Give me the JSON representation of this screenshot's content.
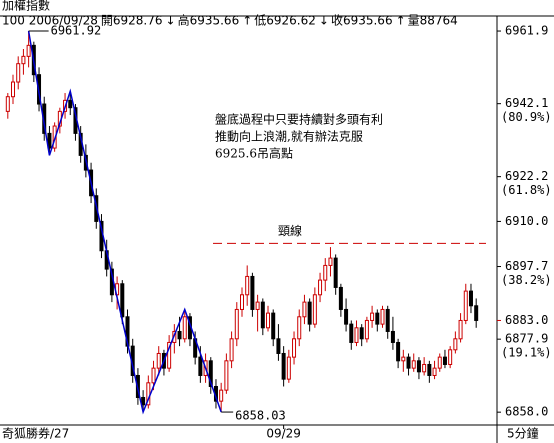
{
  "chart_data": {
    "type": "candlestick",
    "title": "加權指數",
    "info": [
      {
        "text": "100 2006/09/28",
        "color": "#000"
      },
      {
        "text": "開6928.76",
        "color": "#000"
      },
      {
        "text": "↓",
        "color": "#000"
      },
      {
        "text": "高6935.66",
        "color": "#900"
      },
      {
        "text": "↑",
        "color": "#c00"
      },
      {
        "text": "低6926.62",
        "color": "#000"
      },
      {
        "text": "↓",
        "color": "#000"
      },
      {
        "text": "收6935.66",
        "color": "#900"
      },
      {
        "text": "↑",
        "color": "#c00"
      },
      {
        "text": "量88764",
        "color": "#000"
      }
    ],
    "footer": [
      "奇狐勝券/27",
      "5分鐘"
    ],
    "xlim": [
      -1.5,
      94
    ],
    "xticks": [
      {
        "value": 53,
        "label": "09/29"
      }
    ],
    "ylim": [
      6854.5,
      6966
    ],
    "yticks": [
      6961.9,
      6942.1,
      6922.2,
      {
        "value": 6910,
        "label": "6910.0"
      },
      6897.7,
      6877.9,
      {
        "value": 6858,
        "label": "6858.0"
      }
    ],
    "fib_labels": [
      "(80.9%)",
      "(61.8%)",
      "(38.2%)",
      "(19.1%)"
    ],
    "last_price": {
      "value": 6883,
      "label": "6883.0"
    },
    "up_color": "#cc0000",
    "down_color": "#000000",
    "wave_color": "#0000cc",
    "candles": [
      [
        6940,
        6945,
        6938,
        6944
      ],
      [
        6944,
        6950,
        6942,
        6948
      ],
      [
        6948,
        6955,
        6946,
        6953
      ],
      [
        6953,
        6957,
        6950,
        6955
      ],
      [
        6955,
        6961.92,
        6952,
        6958
      ],
      [
        6958,
        6959,
        6948,
        6950
      ],
      [
        6950,
        6952,
        6940,
        6942
      ],
      [
        6942,
        6944,
        6932,
        6934
      ],
      [
        6934,
        6936,
        6928,
        6930
      ],
      [
        6930,
        6937,
        6929,
        6936
      ],
      [
        6936,
        6941,
        6934,
        6940
      ],
      [
        6940,
        6945,
        6938,
        6943
      ],
      [
        6943,
        6945.5,
        6939,
        6941
      ],
      [
        6941,
        6942,
        6932,
        6934
      ],
      [
        6934,
        6936,
        6926,
        6928
      ],
      [
        6928,
        6931,
        6922,
        6924
      ],
      [
        6924,
        6926,
        6915,
        6917
      ],
      [
        6917,
        6919,
        6908,
        6910
      ],
      [
        6910,
        6912,
        6900,
        6902
      ],
      [
        6902,
        6905,
        6895,
        6897
      ],
      [
        6897,
        6899,
        6888,
        6890
      ],
      [
        6890,
        6895,
        6886,
        6893
      ],
      [
        6893,
        6894,
        6882,
        6884
      ],
      [
        6884,
        6886,
        6874,
        6876
      ],
      [
        6876,
        6878,
        6866,
        6868
      ],
      [
        6868,
        6870,
        6860,
        6862
      ],
      [
        6862,
        6864,
        6858.03,
        6860
      ],
      [
        6860,
        6868,
        6859,
        6866
      ],
      [
        6866,
        6872,
        6864,
        6870
      ],
      [
        6870,
        6876,
        6868,
        6874
      ],
      [
        6874,
        6875,
        6868,
        6870
      ],
      [
        6870,
        6879,
        6869,
        6877
      ],
      [
        6877,
        6882,
        6874,
        6880
      ],
      [
        6880,
        6884,
        6876,
        6878
      ],
      [
        6878,
        6886,
        6877,
        6884
      ],
      [
        6884,
        6885,
        6876,
        6878
      ],
      [
        6878,
        6880,
        6871,
        6873
      ],
      [
        6873,
        6876,
        6866,
        6868
      ],
      [
        6868,
        6874,
        6866,
        6872
      ],
      [
        6872,
        6873,
        6863,
        6865
      ],
      [
        6865,
        6867,
        6859,
        6861
      ],
      [
        6861,
        6866,
        6858.03,
        6864
      ],
      [
        6864,
        6874,
        6863,
        6872
      ],
      [
        6872,
        6880,
        6870,
        6878
      ],
      [
        6878,
        6888,
        6876,
        6886
      ],
      [
        6886,
        6892,
        6884,
        6890
      ],
      [
        6890,
        6898,
        6887,
        6895
      ],
      [
        6895,
        6896,
        6884,
        6886
      ],
      [
        6886,
        6890,
        6880,
        6888
      ],
      [
        6888,
        6889,
        6879,
        6881
      ],
      [
        6881,
        6887,
        6880,
        6885
      ],
      [
        6885,
        6886,
        6876,
        6878
      ],
      [
        6878,
        6882,
        6872,
        6874
      ],
      [
        6874,
        6876,
        6865,
        6867
      ],
      [
        6867,
        6875,
        6866,
        6873
      ],
      [
        6873,
        6880,
        6871,
        6878
      ],
      [
        6878,
        6886,
        6876,
        6884
      ],
      [
        6884,
        6890,
        6882,
        6888
      ],
      [
        6888,
        6889,
        6880,
        6882
      ],
      [
        6882,
        6892,
        6881,
        6890
      ],
      [
        6890,
        6896,
        6888,
        6894
      ],
      [
        6894,
        6900,
        6891,
        6898
      ],
      [
        6898,
        6903,
        6895,
        6900
      ],
      [
        6900,
        6901,
        6890,
        6892
      ],
      [
        6892,
        6893,
        6884,
        6886
      ],
      [
        6886,
        6889,
        6880,
        6882
      ],
      [
        6882,
        6883,
        6875,
        6877
      ],
      [
        6877,
        6883,
        6876,
        6881
      ],
      [
        6881,
        6882,
        6876,
        6878
      ],
      [
        6878,
        6884,
        6877,
        6883
      ],
      [
        6883,
        6887,
        6881,
        6885
      ],
      [
        6885,
        6886,
        6880,
        6882
      ],
      [
        6882,
        6887,
        6881,
        6886
      ],
      [
        6886,
        6887,
        6878,
        6880
      ],
      [
        6880,
        6884,
        6875,
        6877
      ],
      [
        6877,
        6878,
        6870,
        6872
      ],
      [
        6872,
        6875,
        6869,
        6873
      ],
      [
        6873,
        6874,
        6868,
        6870
      ],
      [
        6870,
        6874,
        6869,
        6872
      ],
      [
        6872,
        6873,
        6867,
        6869
      ],
      [
        6869,
        6873,
        6868,
        6871
      ],
      [
        6871,
        6872,
        6866,
        6868
      ],
      [
        6868,
        6872,
        6867,
        6870
      ],
      [
        6870,
        6874,
        6869,
        6873
      ],
      [
        6873,
        6875,
        6870,
        6871
      ],
      [
        6871,
        6876,
        6870,
        6875
      ],
      [
        6875,
        6880,
        6874,
        6878
      ],
      [
        6878,
        6885,
        6877,
        6883
      ],
      [
        6883,
        6893,
        6882,
        6891
      ],
      [
        6891,
        6893,
        6885,
        6887
      ],
      [
        6887,
        6889,
        6881,
        6883
      ]
    ],
    "wave": {
      "x": [
        4,
        8,
        12,
        26,
        34,
        41
      ],
      "values": [
        6961.92,
        6928,
        6945.5,
        6858.03,
        6886,
        6858.03
      ]
    },
    "peak_label": "6961.92",
    "trough_label": "6858.03",
    "neckline": {
      "value": 6904,
      "label": "頸線",
      "color": "#cc0000"
    },
    "annotation": [
      "盤底過程中只要持續對多頭有利",
      "推動向上浪潮,就有辦法克服",
      "6925.6吊高點"
    ]
  }
}
